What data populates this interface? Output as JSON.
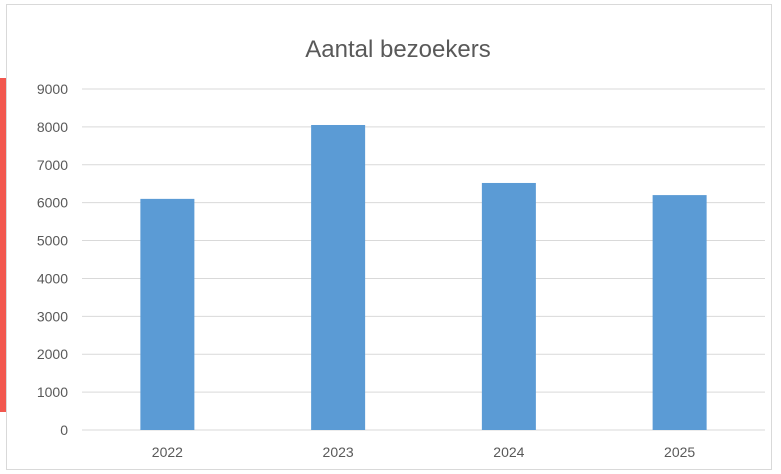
{
  "accent_color": "#f2574e",
  "chart_data": {
    "type": "bar",
    "title": "Aantal bezoekers",
    "xlabel": "",
    "ylabel": "",
    "categories": [
      "2022",
      "2023",
      "2024",
      "2025"
    ],
    "values": [
      6100,
      8050,
      6520,
      6200
    ],
    "ylim": [
      0,
      9000
    ],
    "yticks": [
      0,
      1000,
      2000,
      3000,
      4000,
      5000,
      6000,
      7000,
      8000,
      9000
    ],
    "grid": true,
    "bar_color": "#5b9bd5",
    "grid_color": "#d9d9d9",
    "text_color": "#595959"
  }
}
